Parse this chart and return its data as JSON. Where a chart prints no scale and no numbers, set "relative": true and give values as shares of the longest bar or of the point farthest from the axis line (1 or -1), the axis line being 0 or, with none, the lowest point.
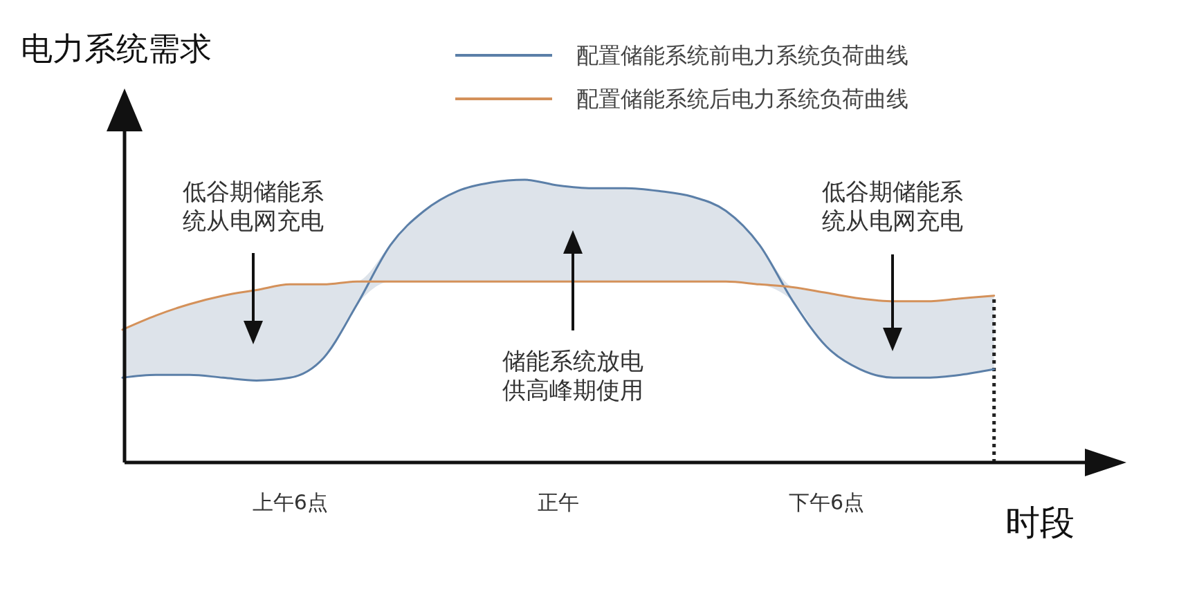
{
  "chart_data": {
    "type": "line",
    "relative": true,
    "ylabel": "电力系统需求",
    "xlabel": "时段",
    "categories": [
      null,
      null,
      null,
      null,
      null,
      "上午6点",
      null,
      null,
      null,
      null,
      null,
      null,
      null,
      "正午",
      null,
      null,
      null,
      null,
      null,
      null,
      null,
      "下午6点",
      null,
      null,
      null,
      null,
      null
    ],
    "legend": "top right",
    "marker": "none",
    "line_style": "solid",
    "series": [
      {
        "name": "配置储能系统前电力系统负荷曲线",
        "color": "#5b7fa8",
        "values": [
          0.3,
          0.31,
          0.31,
          0.3,
          0.29,
          0.3,
          0.37,
          0.56,
          0.77,
          0.89,
          0.96,
          0.99,
          1.0,
          0.98,
          0.97,
          0.97,
          0.96,
          0.94,
          0.89,
          0.77,
          0.57,
          0.41,
          0.33,
          0.3,
          0.3,
          0.31,
          0.33
        ],
        "lower": [
          0.3,
          0.31,
          0.31,
          0.3,
          0.29,
          0.3,
          0.37,
          0.56,
          0.64,
          0.64,
          0.64,
          0.64,
          0.64,
          0.64,
          0.64,
          0.64,
          0.64,
          0.64,
          0.64,
          0.63,
          0.57,
          0.41,
          0.33,
          0.3,
          0.3,
          0.31,
          0.33
        ],
        "upper": [
          0.47,
          0.52,
          0.56,
          0.59,
          0.61,
          0.63,
          0.63,
          0.64,
          0.77,
          0.89,
          0.96,
          0.99,
          1.0,
          0.98,
          0.97,
          0.97,
          0.96,
          0.94,
          0.89,
          0.77,
          0.62,
          0.6,
          0.58,
          0.57,
          0.57,
          0.58,
          0.59
        ]
      },
      {
        "name": "配置储能系统后电力系统负荷曲线",
        "color": "#d4915a",
        "values": [
          0.47,
          0.52,
          0.56,
          0.59,
          0.61,
          0.63,
          0.63,
          0.64,
          0.64,
          0.64,
          0.64,
          0.64,
          0.64,
          0.64,
          0.64,
          0.64,
          0.64,
          0.64,
          0.64,
          0.63,
          0.62,
          0.6,
          0.58,
          0.57,
          0.57,
          0.58,
          0.59
        ]
      }
    ],
    "annotations": [
      "低谷期储能系统从电网充电",
      "储能系统放电供高峰期使用",
      "低谷期储能系统从电网充电"
    ]
  }
}
